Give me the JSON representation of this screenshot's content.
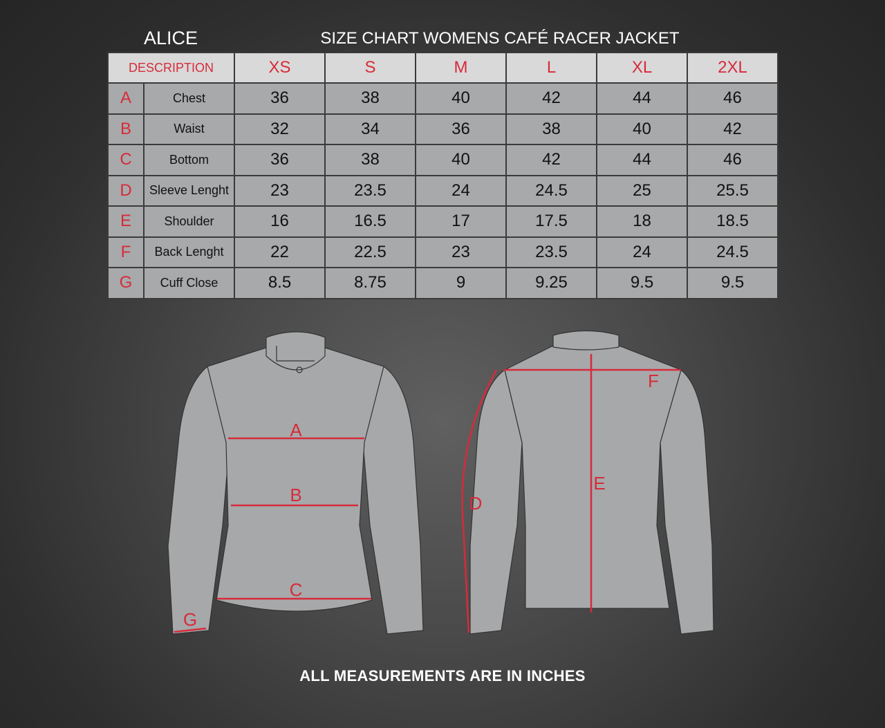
{
  "brand": "ALICE",
  "title": "SIZE CHART WOMENS CAFÉ RACER JACKET",
  "table": {
    "description_header": "DESCRIPTION",
    "sizes": [
      "XS",
      "S",
      "M",
      "L",
      "XL",
      "2XL"
    ],
    "rows": [
      {
        "letter": "A",
        "label": "Chest",
        "values": [
          "36",
          "38",
          "40",
          "42",
          "44",
          "46"
        ]
      },
      {
        "letter": "B",
        "label": "Waist",
        "values": [
          "32",
          "34",
          "36",
          "38",
          "40",
          "42"
        ]
      },
      {
        "letter": "C",
        "label": "Bottom",
        "values": [
          "36",
          "38",
          "40",
          "42",
          "44",
          "46"
        ]
      },
      {
        "letter": "D",
        "label": "Sleeve Lenght",
        "values": [
          "23",
          "23.5",
          "24",
          "24.5",
          "25",
          "25.5"
        ]
      },
      {
        "letter": "E",
        "label": "Shoulder",
        "values": [
          "16",
          "16.5",
          "17",
          "17.5",
          "18",
          "18.5"
        ]
      },
      {
        "letter": "F",
        "label": "Back Lenght",
        "values": [
          "22",
          "22.5",
          "23",
          "23.5",
          "24",
          "24.5"
        ]
      },
      {
        "letter": "G",
        "label": "Cuff Close",
        "values": [
          "8.5",
          "8.75",
          "9",
          "9.25",
          "9.5",
          "9.5"
        ]
      }
    ]
  },
  "diagram": {
    "front_labels": [
      "A",
      "B",
      "C",
      "G"
    ],
    "back_labels": [
      "D",
      "E",
      "F"
    ],
    "accent_color": "#d62b3a"
  },
  "footer": "ALL MEASUREMENTS ARE IN INCHES"
}
